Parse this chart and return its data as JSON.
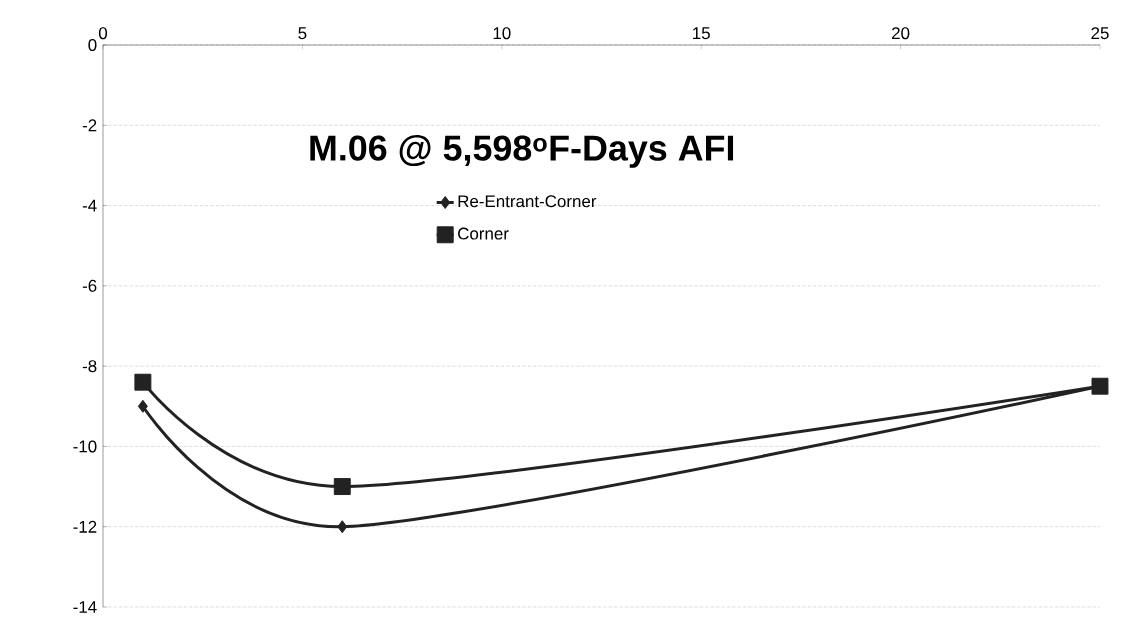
{
  "chart_data": {
    "type": "line",
    "title": "M.06 @ 5,598$^{o}$F-Days AFI",
    "x": [
      1,
      6,
      25
    ],
    "series": [
      {
        "name": "Re-Entrant-Corner",
        "color": "#222222",
        "marker": "diamond",
        "values": [
          -9,
          -12,
          -8.5
        ]
      },
      {
        "name": "Corner",
        "color": "#222222",
        "marker": "square",
        "values": [
          -8.4,
          -11,
          -8.5
        ]
      }
    ],
    "xlim": [
      0,
      25
    ],
    "xticks": [
      0,
      5,
      10,
      15,
      20,
      25
    ],
    "ylim": [
      -14,
      0
    ],
    "yticks": [
      -14,
      -12,
      -10,
      -8,
      -6,
      -4,
      -2,
      0
    ],
    "grid": "y",
    "legend": "top"
  }
}
